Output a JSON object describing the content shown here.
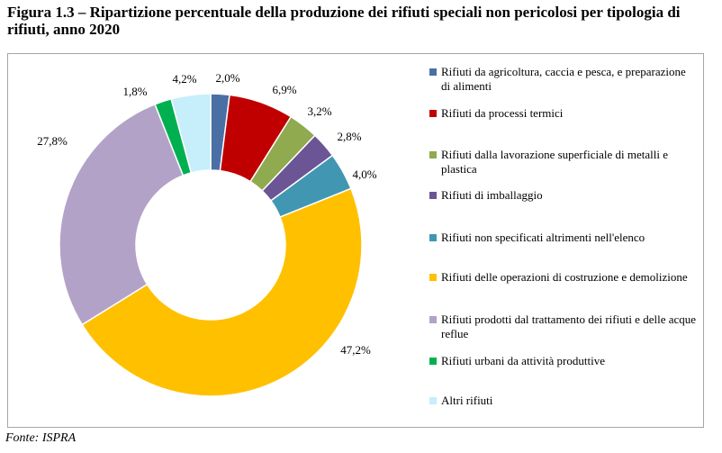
{
  "title": "Figura 1.3 – Ripartizione percentuale della produzione dei rifiuti speciali non pericolosi per tipologia di rifiuti, anno 2020",
  "source": "Fonte: ISPRA",
  "chart_data": {
    "type": "pie",
    "variant": "donut",
    "title": "Figura 1.3 – Ripartizione percentuale della produzione dei rifiuti speciali non pericolosi per tipologia di rifiuti, anno 2020",
    "legend_position": "right",
    "slices": [
      {
        "name": "Rifiuti da agricoltura, caccia e pesca, e preparazione di alimenti",
        "value": 2.0,
        "label": "2,0%",
        "color": "#4a6fa5"
      },
      {
        "name": "Rifiuti da processi termici",
        "value": 6.9,
        "label": "6,9%",
        "color": "#c00000"
      },
      {
        "name": "Rifiuti dalla lavorazione superficiale di metalli e plastica",
        "value": 3.2,
        "label": "3,2%",
        "color": "#8faa4f"
      },
      {
        "name": "Rifiuti di imballaggio",
        "value": 2.8,
        "label": "2,8%",
        "color": "#6b5594"
      },
      {
        "name": "Rifiuti non specificati altrimenti nell'elenco",
        "value": 4.0,
        "label": "4,0%",
        "color": "#4197b2"
      },
      {
        "name": "Rifiuti delle operazioni di costruzione e demolizione",
        "value": 47.2,
        "label": "47,2%",
        "color": "#ffc000"
      },
      {
        "name": "Rifiuti prodotti dal trattamento dei rifiuti e delle acque reflue",
        "value": 27.8,
        "label": "27,8%",
        "color": "#b3a2c7"
      },
      {
        "name": "Rifiuti urbani da attività produttive",
        "value": 1.8,
        "label": "1,8%",
        "color": "#00b050"
      },
      {
        "name": "Altri rifiuti",
        "value": 4.2,
        "label": "4,2%",
        "color": "#c6eefb"
      }
    ]
  }
}
